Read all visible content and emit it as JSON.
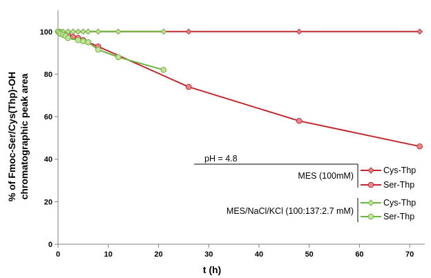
{
  "chart_data": {
    "type": "line",
    "xlabel": "t (h)",
    "ylabel_line1": "% of Fmoc-Ser/Cys(Thp)-OH",
    "ylabel_line2": "chromatographic  peak area",
    "xlim": [
      0,
      73
    ],
    "ylim": [
      0,
      110
    ],
    "xticks": [
      0,
      10,
      20,
      30,
      40,
      50,
      60,
      70
    ],
    "yticks": [
      0,
      20,
      40,
      60,
      80,
      100
    ],
    "grid": false,
    "annotations": {
      "ph": "pH = 4.8",
      "group1": "MES (100mM)",
      "group2": "MES/NaCl/KCl (100:137:2.7 mM)"
    },
    "series": [
      {
        "name": "Cys-Thp",
        "group": 1,
        "color": "#c0282e",
        "marker": "diamond",
        "x": [
          0,
          0.5,
          1,
          2,
          3,
          4,
          5,
          6,
          8,
          12,
          21,
          26,
          48,
          72
        ],
        "y": [
          100,
          100,
          100,
          100,
          100,
          100,
          100,
          100,
          100,
          100,
          100,
          100,
          100,
          100
        ]
      },
      {
        "name": "Ser-Thp",
        "group": 1,
        "color": "#c0282e",
        "marker": "circle",
        "x": [
          0,
          0.25,
          0.5,
          1,
          1.5,
          2,
          3,
          4,
          5,
          6,
          8,
          26,
          48,
          72
        ],
        "y": [
          100,
          99.8,
          99.5,
          99,
          98.8,
          98.5,
          97.5,
          97,
          96,
          95,
          93,
          74,
          58,
          46
        ]
      },
      {
        "name": "Cys-Thp",
        "group": 2,
        "color": "#6db33f",
        "marker": "diamond",
        "x": [
          0,
          0.5,
          1,
          2,
          3,
          4,
          5,
          6,
          8,
          12,
          21
        ],
        "y": [
          100,
          100,
          100,
          100,
          100,
          100,
          100,
          100,
          100,
          100,
          100
        ]
      },
      {
        "name": "Ser-Thp",
        "group": 2,
        "color": "#6db33f",
        "marker": "circle",
        "x": [
          0,
          0.25,
          0.5,
          1,
          1.5,
          2,
          4,
          5,
          6,
          8,
          12,
          21
        ],
        "y": [
          100,
          99.5,
          99,
          98.5,
          98,
          97,
          96,
          95.5,
          95,
          91.5,
          88,
          82
        ]
      }
    ]
  }
}
